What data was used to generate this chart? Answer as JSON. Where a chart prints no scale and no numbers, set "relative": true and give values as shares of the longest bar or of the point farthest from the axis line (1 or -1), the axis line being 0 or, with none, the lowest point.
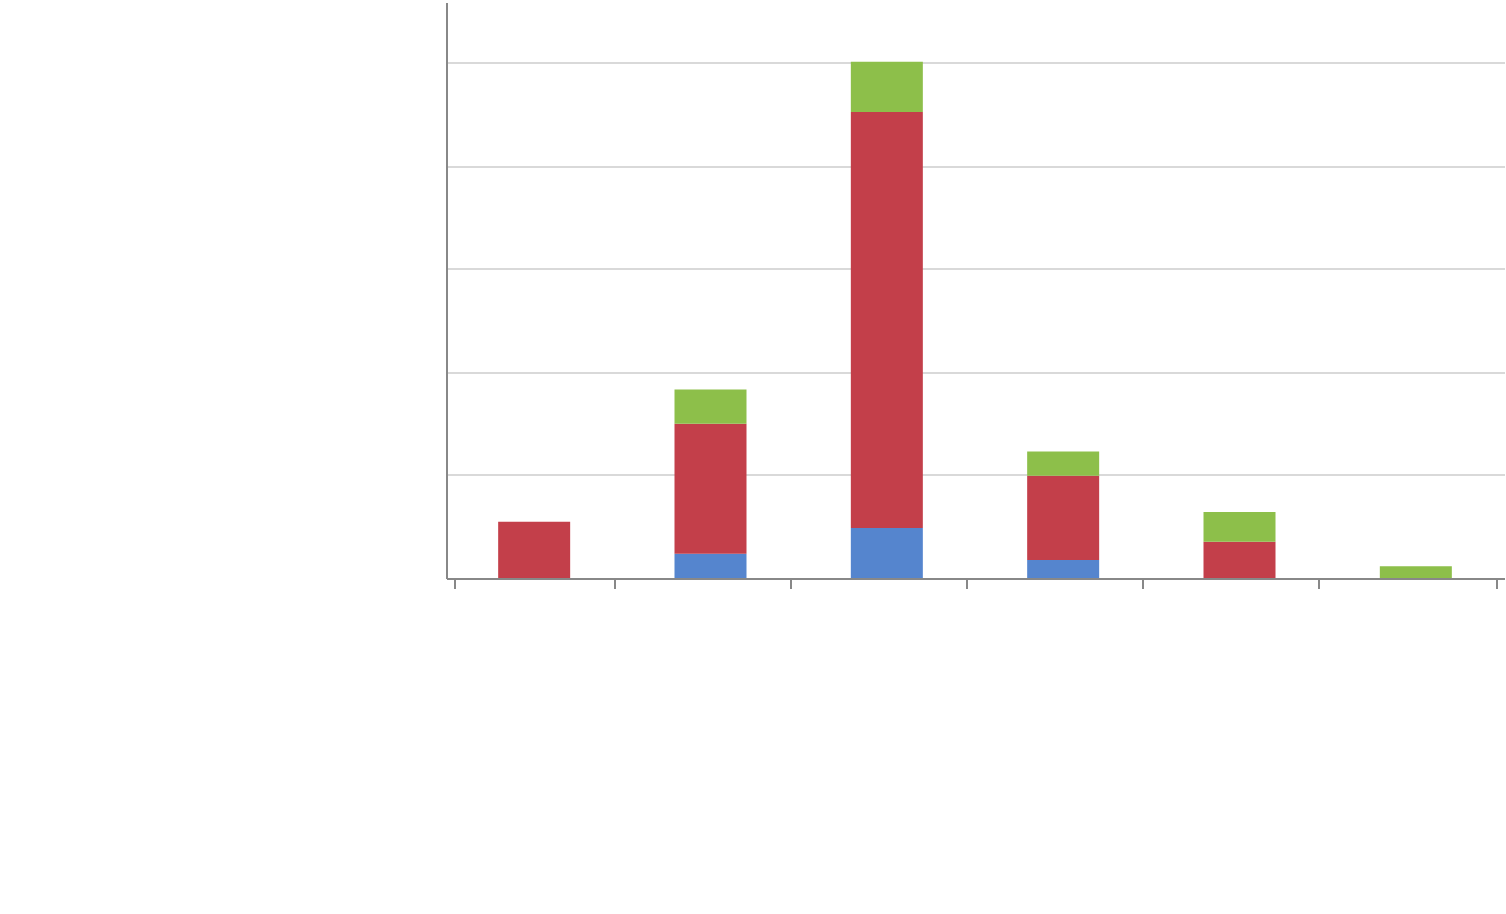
{
  "chart_data": {
    "type": "bar",
    "stacked": true,
    "relative": true,
    "categories": [
      null,
      null,
      null,
      null,
      null,
      null
    ],
    "series": [
      {
        "color": "#5585ce",
        "values": [
          0,
          0.047,
          0.097,
          0.035,
          0,
          0
        ]
      },
      {
        "color": "#c33f4a",
        "values": [
          0.109,
          0.252,
          0.806,
          0.163,
          0.07,
          0
        ]
      },
      {
        "color": "#8dbf4a",
        "values": [
          0,
          0.066,
          0.097,
          0.047,
          0.058,
          0.023
        ]
      }
    ],
    "grid": "y"
  }
}
